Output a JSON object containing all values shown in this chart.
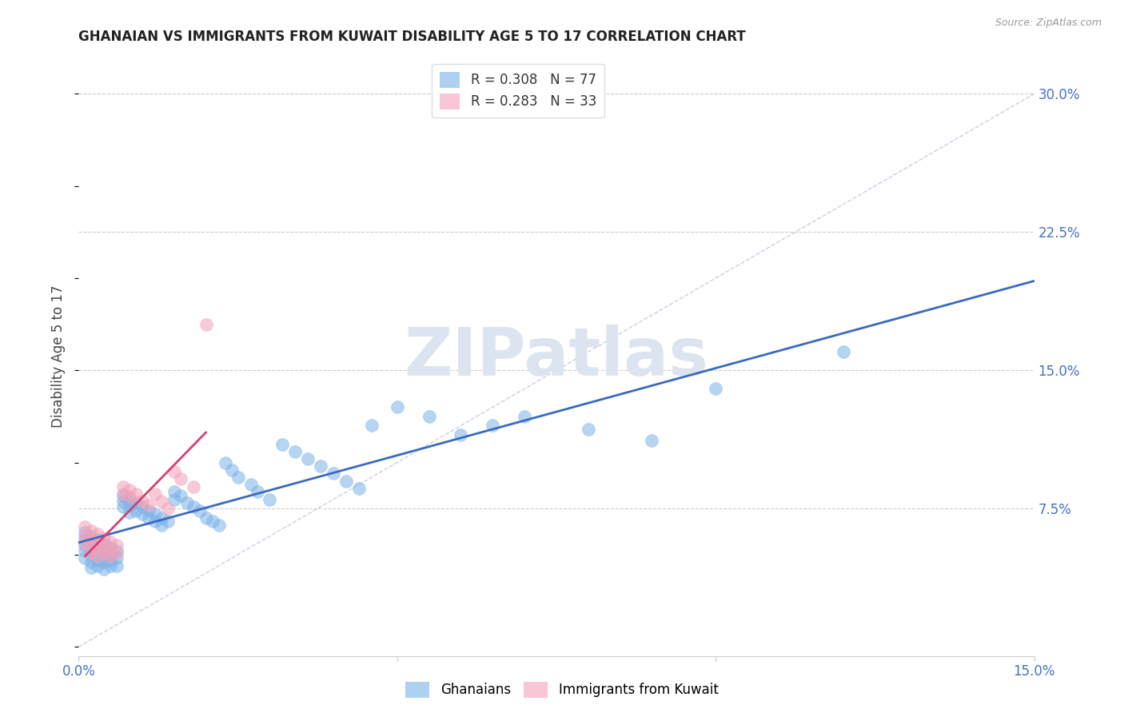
{
  "title": "GHANAIAN VS IMMIGRANTS FROM KUWAIT DISABILITY AGE 5 TO 17 CORRELATION CHART",
  "source": "Source: ZipAtlas.com",
  "ylabel": "Disability Age 5 to 17",
  "xlim": [
    0.0,
    0.15
  ],
  "ylim": [
    -0.005,
    0.32
  ],
  "xticks": [
    0.0,
    0.05,
    0.1,
    0.15
  ],
  "xtick_labels": [
    "0.0%",
    "",
    "",
    "15.0%"
  ],
  "ytick_labels_right": [
    "30.0%",
    "22.5%",
    "15.0%",
    "7.5%"
  ],
  "ytick_positions_right": [
    0.3,
    0.225,
    0.15,
    0.075
  ],
  "blue_color": "#7ab3e8",
  "pink_color": "#f4a0b8",
  "trendline_blue_color": "#3a6abf",
  "trendline_pink_color": "#d44070",
  "dashed_diag_color": "#c8d0e0",
  "watermark": "ZIPatlas",
  "watermark_color": "#dce4f0",
  "ghanaians_x": [
    0.001,
    0.001,
    0.001,
    0.001,
    0.001,
    0.002,
    0.002,
    0.002,
    0.002,
    0.002,
    0.002,
    0.003,
    0.003,
    0.003,
    0.003,
    0.003,
    0.004,
    0.004,
    0.004,
    0.004,
    0.004,
    0.005,
    0.005,
    0.005,
    0.005,
    0.006,
    0.006,
    0.006,
    0.007,
    0.007,
    0.007,
    0.008,
    0.008,
    0.008,
    0.009,
    0.009,
    0.01,
    0.01,
    0.011,
    0.011,
    0.012,
    0.012,
    0.013,
    0.013,
    0.014,
    0.015,
    0.015,
    0.016,
    0.017,
    0.018,
    0.019,
    0.02,
    0.021,
    0.022,
    0.023,
    0.024,
    0.025,
    0.027,
    0.028,
    0.03,
    0.032,
    0.034,
    0.036,
    0.038,
    0.04,
    0.042,
    0.044,
    0.046,
    0.05,
    0.055,
    0.06,
    0.065,
    0.07,
    0.08,
    0.09,
    0.1,
    0.12
  ],
  "ghanaians_y": [
    0.062,
    0.058,
    0.055,
    0.052,
    0.048,
    0.06,
    0.057,
    0.053,
    0.05,
    0.046,
    0.043,
    0.058,
    0.055,
    0.051,
    0.047,
    0.044,
    0.056,
    0.053,
    0.049,
    0.046,
    0.042,
    0.054,
    0.051,
    0.047,
    0.044,
    0.052,
    0.048,
    0.044,
    0.082,
    0.079,
    0.076,
    0.08,
    0.077,
    0.073,
    0.078,
    0.074,
    0.076,
    0.072,
    0.074,
    0.07,
    0.072,
    0.068,
    0.07,
    0.066,
    0.068,
    0.084,
    0.08,
    0.082,
    0.078,
    0.076,
    0.074,
    0.07,
    0.068,
    0.066,
    0.1,
    0.096,
    0.092,
    0.088,
    0.084,
    0.08,
    0.11,
    0.106,
    0.102,
    0.098,
    0.094,
    0.09,
    0.086,
    0.12,
    0.13,
    0.125,
    0.115,
    0.12,
    0.125,
    0.118,
    0.112,
    0.14,
    0.16
  ],
  "kuwait_x": [
    0.001,
    0.001,
    0.001,
    0.002,
    0.002,
    0.002,
    0.002,
    0.003,
    0.003,
    0.003,
    0.003,
    0.004,
    0.004,
    0.004,
    0.005,
    0.005,
    0.005,
    0.006,
    0.006,
    0.007,
    0.007,
    0.008,
    0.008,
    0.009,
    0.01,
    0.011,
    0.012,
    0.013,
    0.014,
    0.015,
    0.016,
    0.018,
    0.02
  ],
  "kuwait_y": [
    0.065,
    0.06,
    0.056,
    0.063,
    0.059,
    0.055,
    0.051,
    0.061,
    0.057,
    0.053,
    0.049,
    0.059,
    0.055,
    0.051,
    0.057,
    0.053,
    0.049,
    0.055,
    0.051,
    0.087,
    0.083,
    0.085,
    0.081,
    0.083,
    0.079,
    0.077,
    0.083,
    0.079,
    0.075,
    0.095,
    0.091,
    0.087,
    0.175
  ]
}
